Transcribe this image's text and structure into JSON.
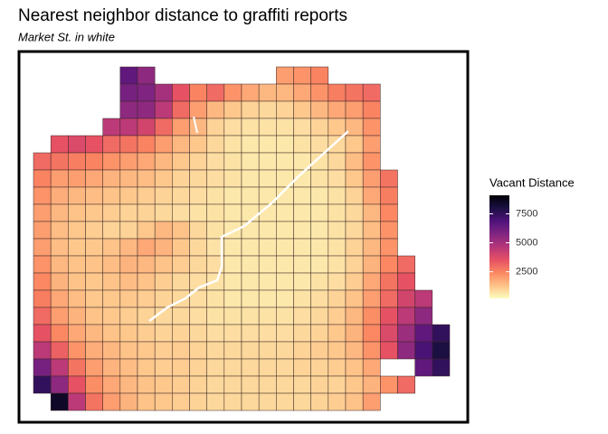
{
  "chart_data": {
    "type": "grid-map",
    "title": "Nearest neighbor distance to graffiti reports",
    "subtitle": "Market St. in white",
    "legend_title": "Vacant Distance",
    "colorlim": [
      200,
      9100
    ],
    "ticks": [
      2500,
      5000,
      7500
    ],
    "color_scale": [
      "#fcfdbf",
      "#fec287",
      "#fb8761",
      "#e55064",
      "#b5367a",
      "#812581",
      "#4f127b",
      "#1c1044",
      "#000004"
    ],
    "grid": [
      [
        null,
        null,
        null,
        null,
        null,
        6500,
        5500,
        null,
        null,
        null,
        null,
        null,
        null,
        null,
        2000,
        2200,
        2500,
        null,
        null,
        null,
        null,
        null,
        null,
        null
      ],
      [
        null,
        null,
        null,
        null,
        null,
        6000,
        5800,
        5000,
        3500,
        2500,
        3000,
        2200,
        1800,
        1500,
        1500,
        1800,
        2200,
        2600,
        2800,
        3000,
        null,
        null,
        null,
        null
      ],
      [
        null,
        null,
        null,
        null,
        null,
        5500,
        5500,
        4500,
        3000,
        2000,
        1500,
        1200,
        1000,
        900,
        1000,
        1200,
        1500,
        1800,
        2000,
        2500,
        null,
        null,
        null,
        null
      ],
      [
        null,
        null,
        null,
        null,
        4500,
        4500,
        4000,
        3000,
        2000,
        1500,
        1000,
        800,
        700,
        700,
        700,
        800,
        1000,
        1200,
        1500,
        2200,
        null,
        null,
        null,
        null
      ],
      [
        null,
        3500,
        3800,
        3500,
        3000,
        2800,
        2500,
        2000,
        1500,
        1200,
        900,
        700,
        600,
        600,
        600,
        700,
        800,
        900,
        1200,
        2000,
        null,
        null,
        null,
        null
      ],
      [
        3000,
        2800,
        2600,
        2500,
        2200,
        2000,
        1800,
        1500,
        1200,
        1000,
        800,
        700,
        600,
        600,
        600,
        600,
        700,
        900,
        1400,
        2200,
        null,
        null,
        null,
        null
      ],
      [
        2500,
        2000,
        2000,
        1800,
        1600,
        1500,
        1400,
        1200,
        1000,
        900,
        800,
        700,
        600,
        600,
        600,
        600,
        700,
        800,
        1200,
        2000,
        2800,
        null,
        null,
        null
      ],
      [
        2200,
        1700,
        1500,
        1400,
        1300,
        1200,
        1100,
        1000,
        900,
        800,
        700,
        600,
        600,
        600,
        600,
        600,
        600,
        700,
        1000,
        1800,
        2600,
        null,
        null,
        null
      ],
      [
        2000,
        1500,
        1300,
        1200,
        1100,
        1000,
        1000,
        900,
        800,
        700,
        700,
        600,
        600,
        600,
        600,
        600,
        600,
        700,
        900,
        1500,
        2400,
        null,
        null,
        null
      ],
      [
        2000,
        1400,
        1200,
        1100,
        1000,
        1000,
        1200,
        1500,
        1300,
        900,
        700,
        600,
        600,
        600,
        600,
        600,
        600,
        700,
        900,
        1400,
        2200,
        null,
        null,
        null
      ],
      [
        2000,
        1400,
        1200,
        1200,
        1300,
        1500,
        1800,
        1600,
        1200,
        900,
        700,
        600,
        600,
        600,
        600,
        600,
        600,
        700,
        1000,
        1500,
        2200,
        null,
        null,
        null
      ],
      [
        2200,
        1500,
        1300,
        1300,
        1400,
        1600,
        1500,
        1300,
        1100,
        900,
        800,
        600,
        600,
        600,
        600,
        600,
        600,
        700,
        1000,
        1600,
        2400,
        3000,
        null,
        null
      ],
      [
        2400,
        1600,
        1300,
        1200,
        1300,
        1400,
        1300,
        1100,
        900,
        800,
        700,
        600,
        600,
        600,
        600,
        600,
        700,
        800,
        1100,
        1800,
        2800,
        3500,
        null,
        null
      ],
      [
        2600,
        1800,
        1400,
        1200,
        1200,
        1200,
        1100,
        1000,
        900,
        800,
        700,
        600,
        600,
        600,
        600,
        700,
        800,
        1000,
        1300,
        2000,
        3000,
        4000,
        4500,
        null
      ],
      [
        3000,
        2000,
        1600,
        1300,
        1200,
        1100,
        1000,
        900,
        900,
        800,
        700,
        700,
        700,
        700,
        700,
        800,
        900,
        1100,
        1500,
        2300,
        3500,
        4500,
        5500,
        null
      ],
      [
        3500,
        2400,
        1800,
        1500,
        1300,
        1200,
        1100,
        1000,
        1000,
        900,
        800,
        800,
        800,
        800,
        800,
        900,
        1000,
        1200,
        1600,
        2400,
        3800,
        5200,
        6500,
        7500
      ],
      [
        4500,
        3200,
        2200,
        1700,
        1500,
        1300,
        1200,
        1100,
        1100,
        1000,
        900,
        900,
        900,
        900,
        900,
        1000,
        1100,
        1200,
        1500,
        2200,
        3500,
        5500,
        7000,
        8000
      ],
      [
        6000,
        4500,
        2800,
        2000,
        1600,
        1400,
        1200,
        1100,
        1100,
        1000,
        900,
        900,
        900,
        900,
        900,
        1000,
        1000,
        1100,
        1300,
        1800,
        null,
        null,
        6500,
        7500
      ],
      [
        7500,
        5500,
        3500,
        2300,
        1800,
        1500,
        1300,
        1200,
        1100,
        1000,
        900,
        900,
        900,
        900,
        900,
        900,
        1000,
        1000,
        1200,
        1600,
        2200,
        3000,
        null,
        null
      ],
      [
        null,
        8500,
        4500,
        2800,
        2000,
        1600,
        1300,
        1200,
        1100,
        1000,
        900,
        900,
        900,
        900,
        900,
        900,
        1000,
        1100,
        1300,
        2000,
        null,
        null,
        null,
        null
      ]
    ]
  }
}
